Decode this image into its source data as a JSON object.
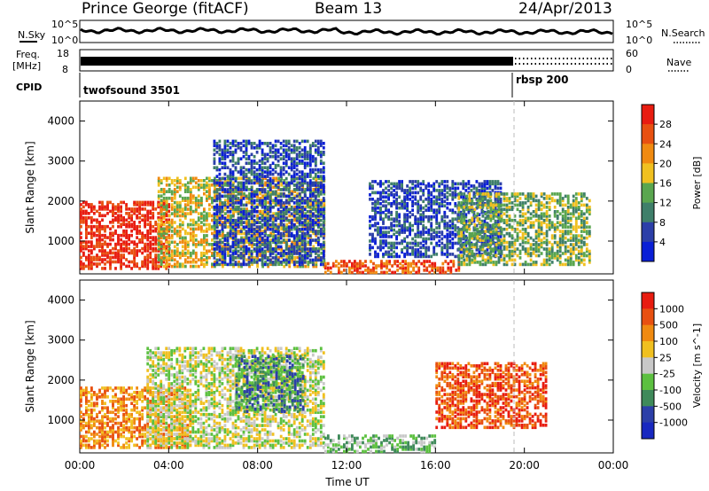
{
  "header": {
    "station": "Prince George (fitACF)",
    "beam": "Beam 13",
    "date": "24/Apr/2013"
  },
  "side_labels": {
    "n_sky": "N.Sky",
    "n_search": "N.Search",
    "freq": "Freq.",
    "freq_unit": "[MHz]",
    "nave": "Nave",
    "cpid": "CPID"
  },
  "noise_axis": {
    "left_top": "10^5",
    "left_bottom": "10^0",
    "right_top": "10^5",
    "right_bottom": "10^0"
  },
  "freq_axis": {
    "left_top": "18",
    "left_bottom": "8",
    "right_top": "60",
    "right_bottom": "0"
  },
  "cpid_segments": [
    {
      "label": "twofsound 3501",
      "start_hour": 0.0
    },
    {
      "label": "rbsp 200",
      "start_hour": 19.4
    }
  ],
  "colors": {
    "power": [
      "#0a1fd6",
      "#2c3fa8",
      "#3f7f6a",
      "#5aa64f",
      "#f0c020",
      "#f08a10",
      "#e85010",
      "#e81c10"
    ],
    "velocity": [
      "#e81c10",
      "#e85010",
      "#f08a10",
      "#f0c020",
      "#c8c8c8",
      "#5cc040",
      "#3f8a5a",
      "#2c3fa8",
      "#1828c0"
    ]
  },
  "chart_data": [
    {
      "type": "heatmap",
      "panel": "power",
      "xlabel": "Time UT",
      "ylabel": "Slant Range [km]",
      "colorbar_label": "Power [dB]",
      "colorbar_ticks": [
        "4",
        "8",
        "12",
        "16",
        "20",
        "24",
        "28"
      ],
      "x_ticks": [
        "00:00",
        "04:00",
        "08:00",
        "12:00",
        "16:00",
        "20:00",
        "00:00"
      ],
      "y_ticks": [
        "1000",
        "2000",
        "3000",
        "4000"
      ],
      "xlim": [
        0,
        24
      ],
      "ylim": [
        180,
        4500
      ],
      "bands": [
        {
          "t": [
            0,
            4
          ],
          "r": [
            300,
            2000
          ],
          "level": 7
        },
        {
          "t": [
            3.5,
            11
          ],
          "r": [
            350,
            2600
          ],
          "level": 4
        },
        {
          "t": [
            6,
            11
          ],
          "r": [
            400,
            3500
          ],
          "level": 1
        },
        {
          "t": [
            11,
            17
          ],
          "r": [
            200,
            500
          ],
          "level": 6
        },
        {
          "t": [
            13,
            19
          ],
          "r": [
            600,
            2500
          ],
          "level": 1
        },
        {
          "t": [
            17,
            23
          ],
          "r": [
            400,
            2200
          ],
          "level": 3
        }
      ]
    },
    {
      "type": "heatmap",
      "panel": "velocity",
      "xlabel": "Time UT",
      "ylabel": "Slant Range [km]",
      "colorbar_label": "Velocity [m s^-1]",
      "colorbar_ticks": [
        "1000",
        "500",
        "100",
        "25",
        "-25",
        "-100",
        "-500",
        "-1000"
      ],
      "x_ticks": [
        "00:00",
        "04:00",
        "08:00",
        "12:00",
        "16:00",
        "20:00",
        "00:00"
      ],
      "y_ticks": [
        "1000",
        "2000",
        "3000",
        "4000"
      ],
      "xlim": [
        0,
        24
      ],
      "ylim": [
        180,
        4500
      ],
      "bands": [
        {
          "t": [
            0,
            5
          ],
          "r": [
            300,
            1800
          ],
          "level": 2
        },
        {
          "t": [
            3,
            11
          ],
          "r": [
            300,
            2800
          ],
          "level": 4
        },
        {
          "t": [
            7,
            10
          ],
          "r": [
            1200,
            2600
          ],
          "level": 6
        },
        {
          "t": [
            11,
            16
          ],
          "r": [
            200,
            600
          ],
          "level": 5
        },
        {
          "t": [
            16,
            21
          ],
          "r": [
            800,
            2400
          ],
          "level": 1
        }
      ]
    }
  ]
}
